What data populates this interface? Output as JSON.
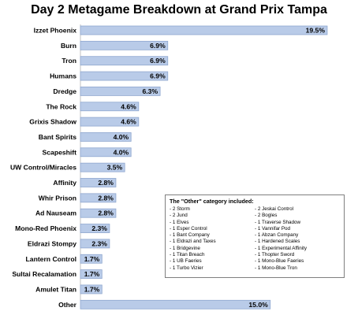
{
  "chart_data": {
    "type": "bar",
    "orientation": "horizontal",
    "title": "Day 2 Metagame Breakdown at Grand Prix Tampa",
    "categories": [
      "Izzet Phoenix",
      "Burn",
      "Tron",
      "Humans",
      "Dredge",
      "The Rock",
      "Grixis Shadow",
      "Bant Spirits",
      "Scapeshift",
      "UW Control/Miracles",
      "Affinity",
      "Whir Prison",
      "Ad Nauseam",
      "Mono-Red Phoenix",
      "Eldrazi Stompy",
      "Lantern Control",
      "Sultai Recalamation",
      "Amulet Titan",
      "Other"
    ],
    "values": [
      19.5,
      6.9,
      6.9,
      6.9,
      6.3,
      4.6,
      4.6,
      4.0,
      4.0,
      3.5,
      2.8,
      2.8,
      2.8,
      2.3,
      2.3,
      1.7,
      1.7,
      1.7,
      15.0
    ],
    "value_labels": [
      "19.5%",
      "6.9%",
      "6.9%",
      "6.9%",
      "6.3%",
      "4.6%",
      "4.6%",
      "4.0%",
      "4.0%",
      "3.5%",
      "2.8%",
      "2.8%",
      "2.8%",
      "2.3%",
      "2.3%",
      "1.7%",
      "1.7%",
      "1.7%",
      "15.0%"
    ],
    "xlim": [
      0,
      20
    ],
    "grid": false,
    "legend": false,
    "bar_color": "#b9cbe8",
    "bar_edge_color": "#8fa7cf"
  },
  "other_box": {
    "title": "The \"Other\" category included:",
    "left_items": [
      "- 2 Storm",
      "- 2 Jund",
      "- 1 Elves",
      "- 1 Esper Control",
      "- 1 Bant Company",
      "- 1 Eldrazi and Taxes",
      "- 1 Bridgevine",
      "- 1 Titan Breach",
      "- 1 UB Faeries",
      "- 1 Turbo Vizier"
    ],
    "right_items": [
      "- 2 Jeskai Control",
      "- 2 Bogles",
      "- 1 Traverse Shadow",
      "- 1 Vannifar Pod",
      "- 1 Abzan Company",
      "- 1 Hardened Scales",
      "- 1 Experimental Affinity",
      "- 1 Thopter Sword",
      "- 1 Mono-Blue Faeries",
      "- 1 Mono-Blue Tron"
    ]
  }
}
